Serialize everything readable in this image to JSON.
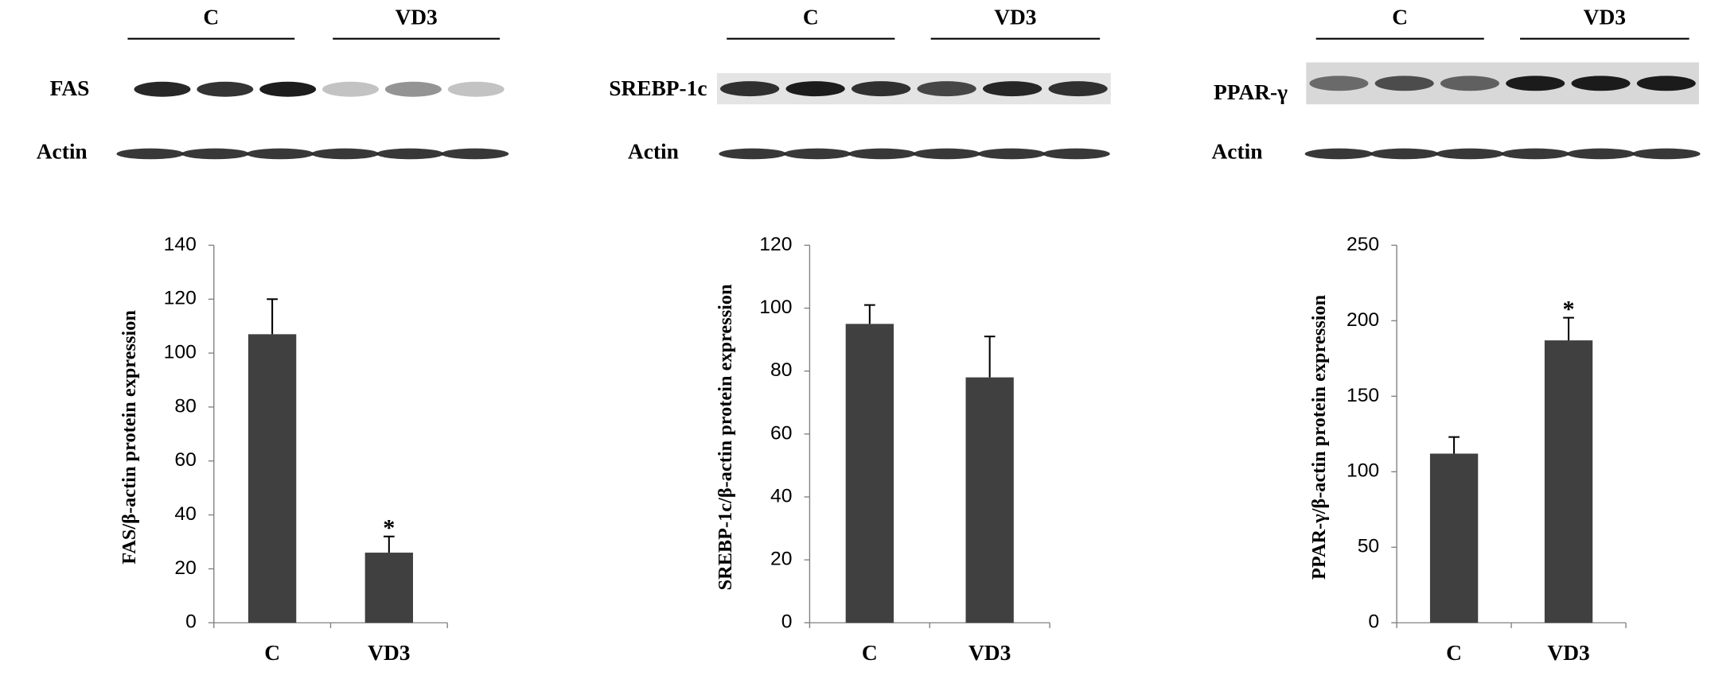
{
  "chart_data": [
    {
      "type": "bar",
      "blot": {
        "protein": "FAS",
        "control": "Actin",
        "groups": [
          "C",
          "VD3"
        ]
      },
      "ylabel": "FAS/β-actin protein expression",
      "categories": [
        "C",
        "VD3"
      ],
      "values": [
        107,
        26
      ],
      "errors": [
        13,
        6
      ],
      "significance": [
        null,
        "*"
      ],
      "color": "#404040",
      "ylim": [
        0,
        140
      ],
      "yticks": [
        0,
        20,
        40,
        60,
        80,
        100,
        120,
        140
      ]
    },
    {
      "type": "bar",
      "blot": {
        "protein": "SREBP-1c",
        "control": "Actin",
        "groups": [
          "C",
          "VD3"
        ]
      },
      "ylabel": "SREBP-1c/β-actin protein expression",
      "categories": [
        "C",
        "VD3"
      ],
      "values": [
        95,
        78
      ],
      "errors": [
        6,
        13
      ],
      "significance": [
        null,
        null
      ],
      "color": "#404040",
      "ylim": [
        0,
        120
      ],
      "yticks": [
        0,
        20,
        40,
        60,
        80,
        100,
        120
      ]
    },
    {
      "type": "bar",
      "blot": {
        "protein": "PPAR-γ",
        "control": "Actin",
        "groups": [
          "C",
          "VD3"
        ]
      },
      "ylabel": "PPAR-γ/β-actin protein expression",
      "categories": [
        "C",
        "VD3"
      ],
      "values": [
        112,
        187
      ],
      "errors": [
        11,
        15
      ],
      "significance": [
        null,
        "*"
      ],
      "color": "#404040",
      "ylim": [
        0,
        250
      ],
      "yticks": [
        0,
        50,
        100,
        150,
        200,
        250
      ]
    }
  ]
}
